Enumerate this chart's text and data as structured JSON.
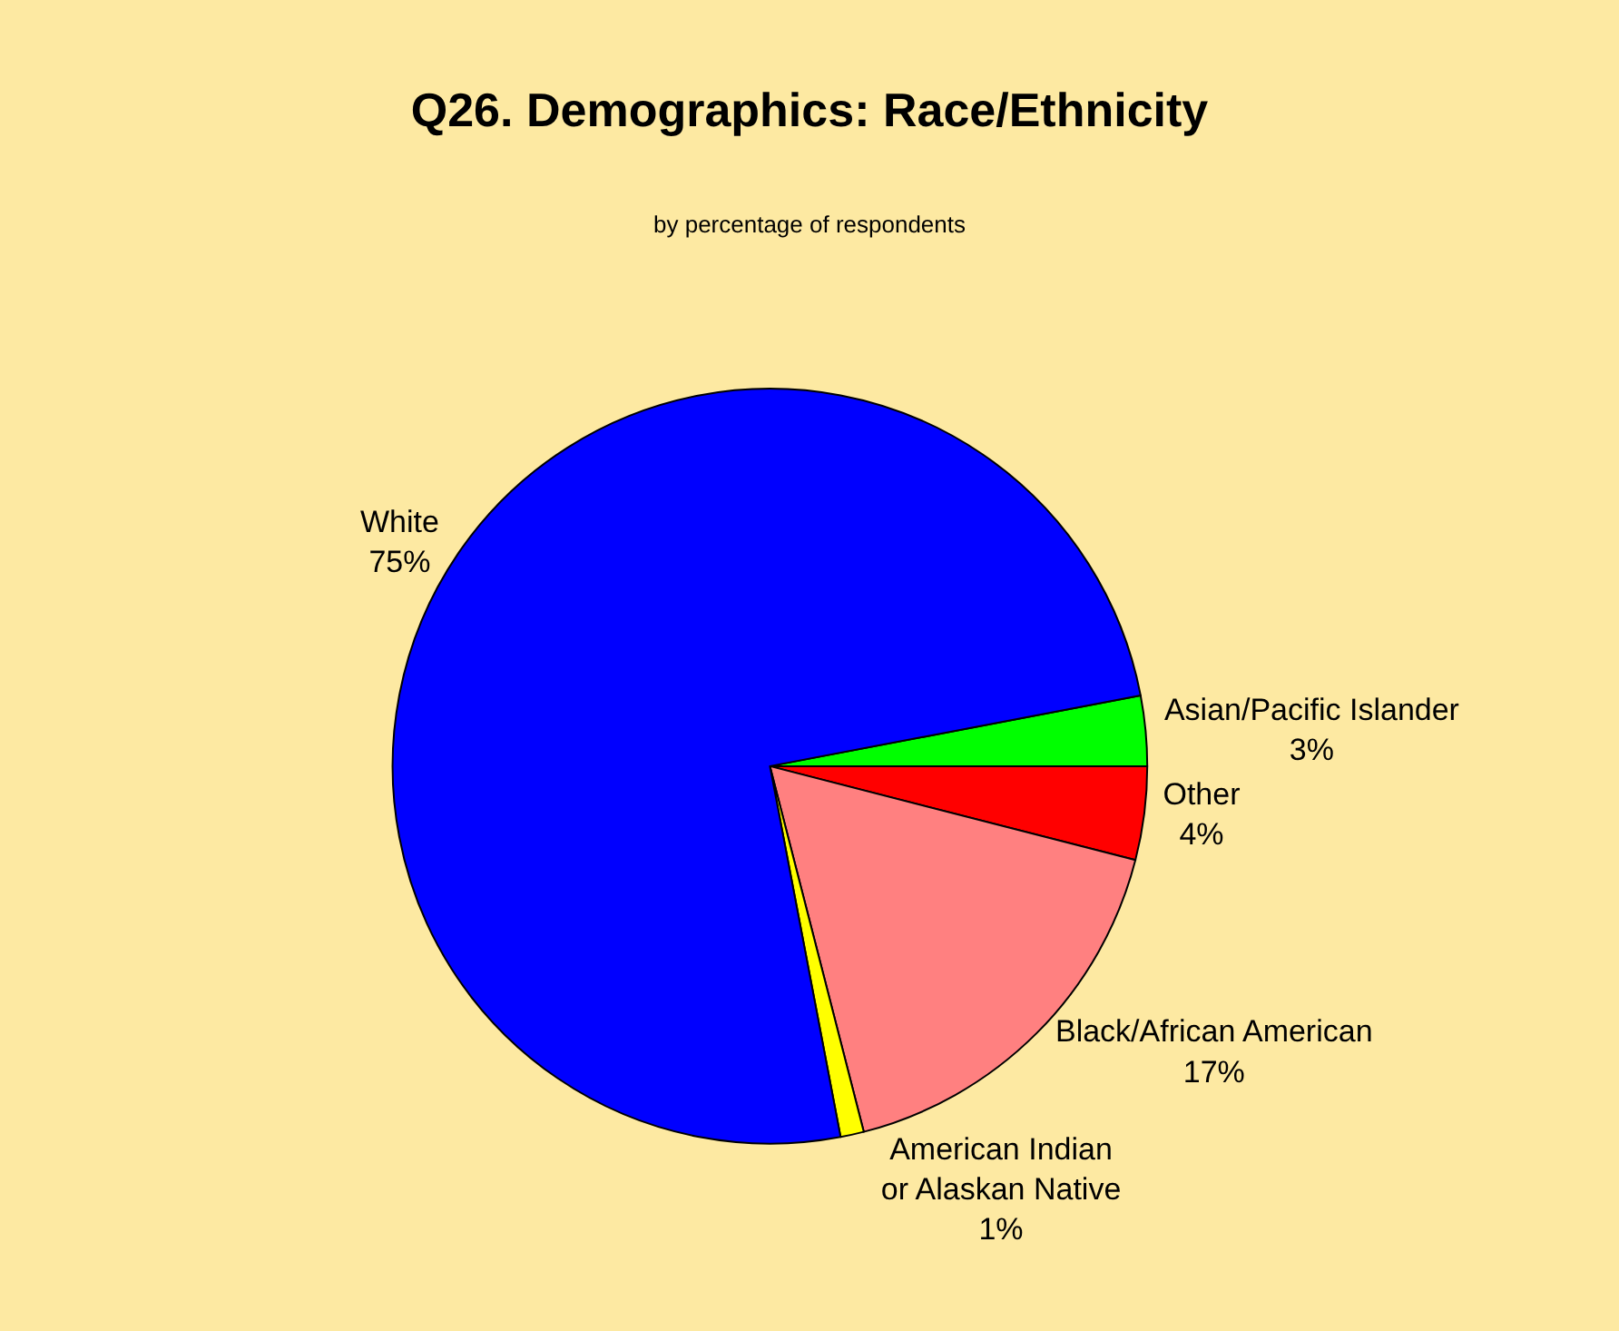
{
  "chart_data": {
    "type": "pie",
    "title": "Q26. Demographics: Race/Ethnicity",
    "subtitle": "by percentage of respondents",
    "categories": [
      "Asian/Pacific Islander",
      "Other",
      "Black/African American",
      "American Indian\nor Alaskan Native",
      "White"
    ],
    "values": [
      3,
      4,
      17,
      1,
      75
    ],
    "value_labels": [
      "3%",
      "4%",
      "17%",
      "1%",
      "75%"
    ],
    "colors": [
      "#00ff00",
      "#ff0000",
      "#ff8080",
      "#ffff00",
      "#0000ff"
    ],
    "legend": false
  }
}
